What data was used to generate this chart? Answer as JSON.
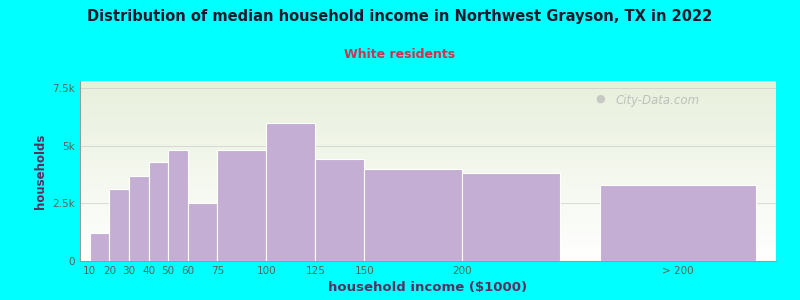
{
  "title": "Distribution of median household income in Northwest Grayson, TX in 2022",
  "subtitle": "White residents",
  "xlabel": "household income ($1000)",
  "ylabel": "households",
  "background_color": "#00FFFF",
  "plot_bg_top": "#e8f0dc",
  "plot_bg_bottom": "#ffffff",
  "bar_color": "#c4aed4",
  "bar_edge_color": "#ffffff",
  "title_color": "#1a1a2e",
  "subtitle_color": "#cc3355",
  "axis_label_color": "#5a3060",
  "tick_label_color": "#556655",
  "positions": [
    10,
    20,
    30,
    40,
    50,
    60,
    75,
    100,
    125,
    150,
    200,
    270
  ],
  "widths": [
    10,
    10,
    10,
    10,
    10,
    15,
    25,
    25,
    25,
    50,
    50,
    80
  ],
  "values": [
    1200,
    3100,
    3700,
    4300,
    4800,
    2500,
    4800,
    6000,
    4400,
    4000,
    3800,
    3300
  ],
  "xtick_positions": [
    10,
    20,
    30,
    40,
    50,
    60,
    75,
    100,
    125,
    150,
    200,
    310
  ],
  "xtick_labels": [
    "10",
    "20",
    "30",
    "40",
    "50",
    "60",
    "75",
    "100",
    "125",
    "150",
    "200",
    "> 200"
  ],
  "ylim": [
    0,
    7800
  ],
  "yticks": [
    0,
    2500,
    5000,
    7500
  ],
  "ytick_labels": [
    "0",
    "2.5k",
    "5k",
    "7.5k"
  ],
  "xlim": [
    5,
    360
  ],
  "watermark": "City-Data.com"
}
